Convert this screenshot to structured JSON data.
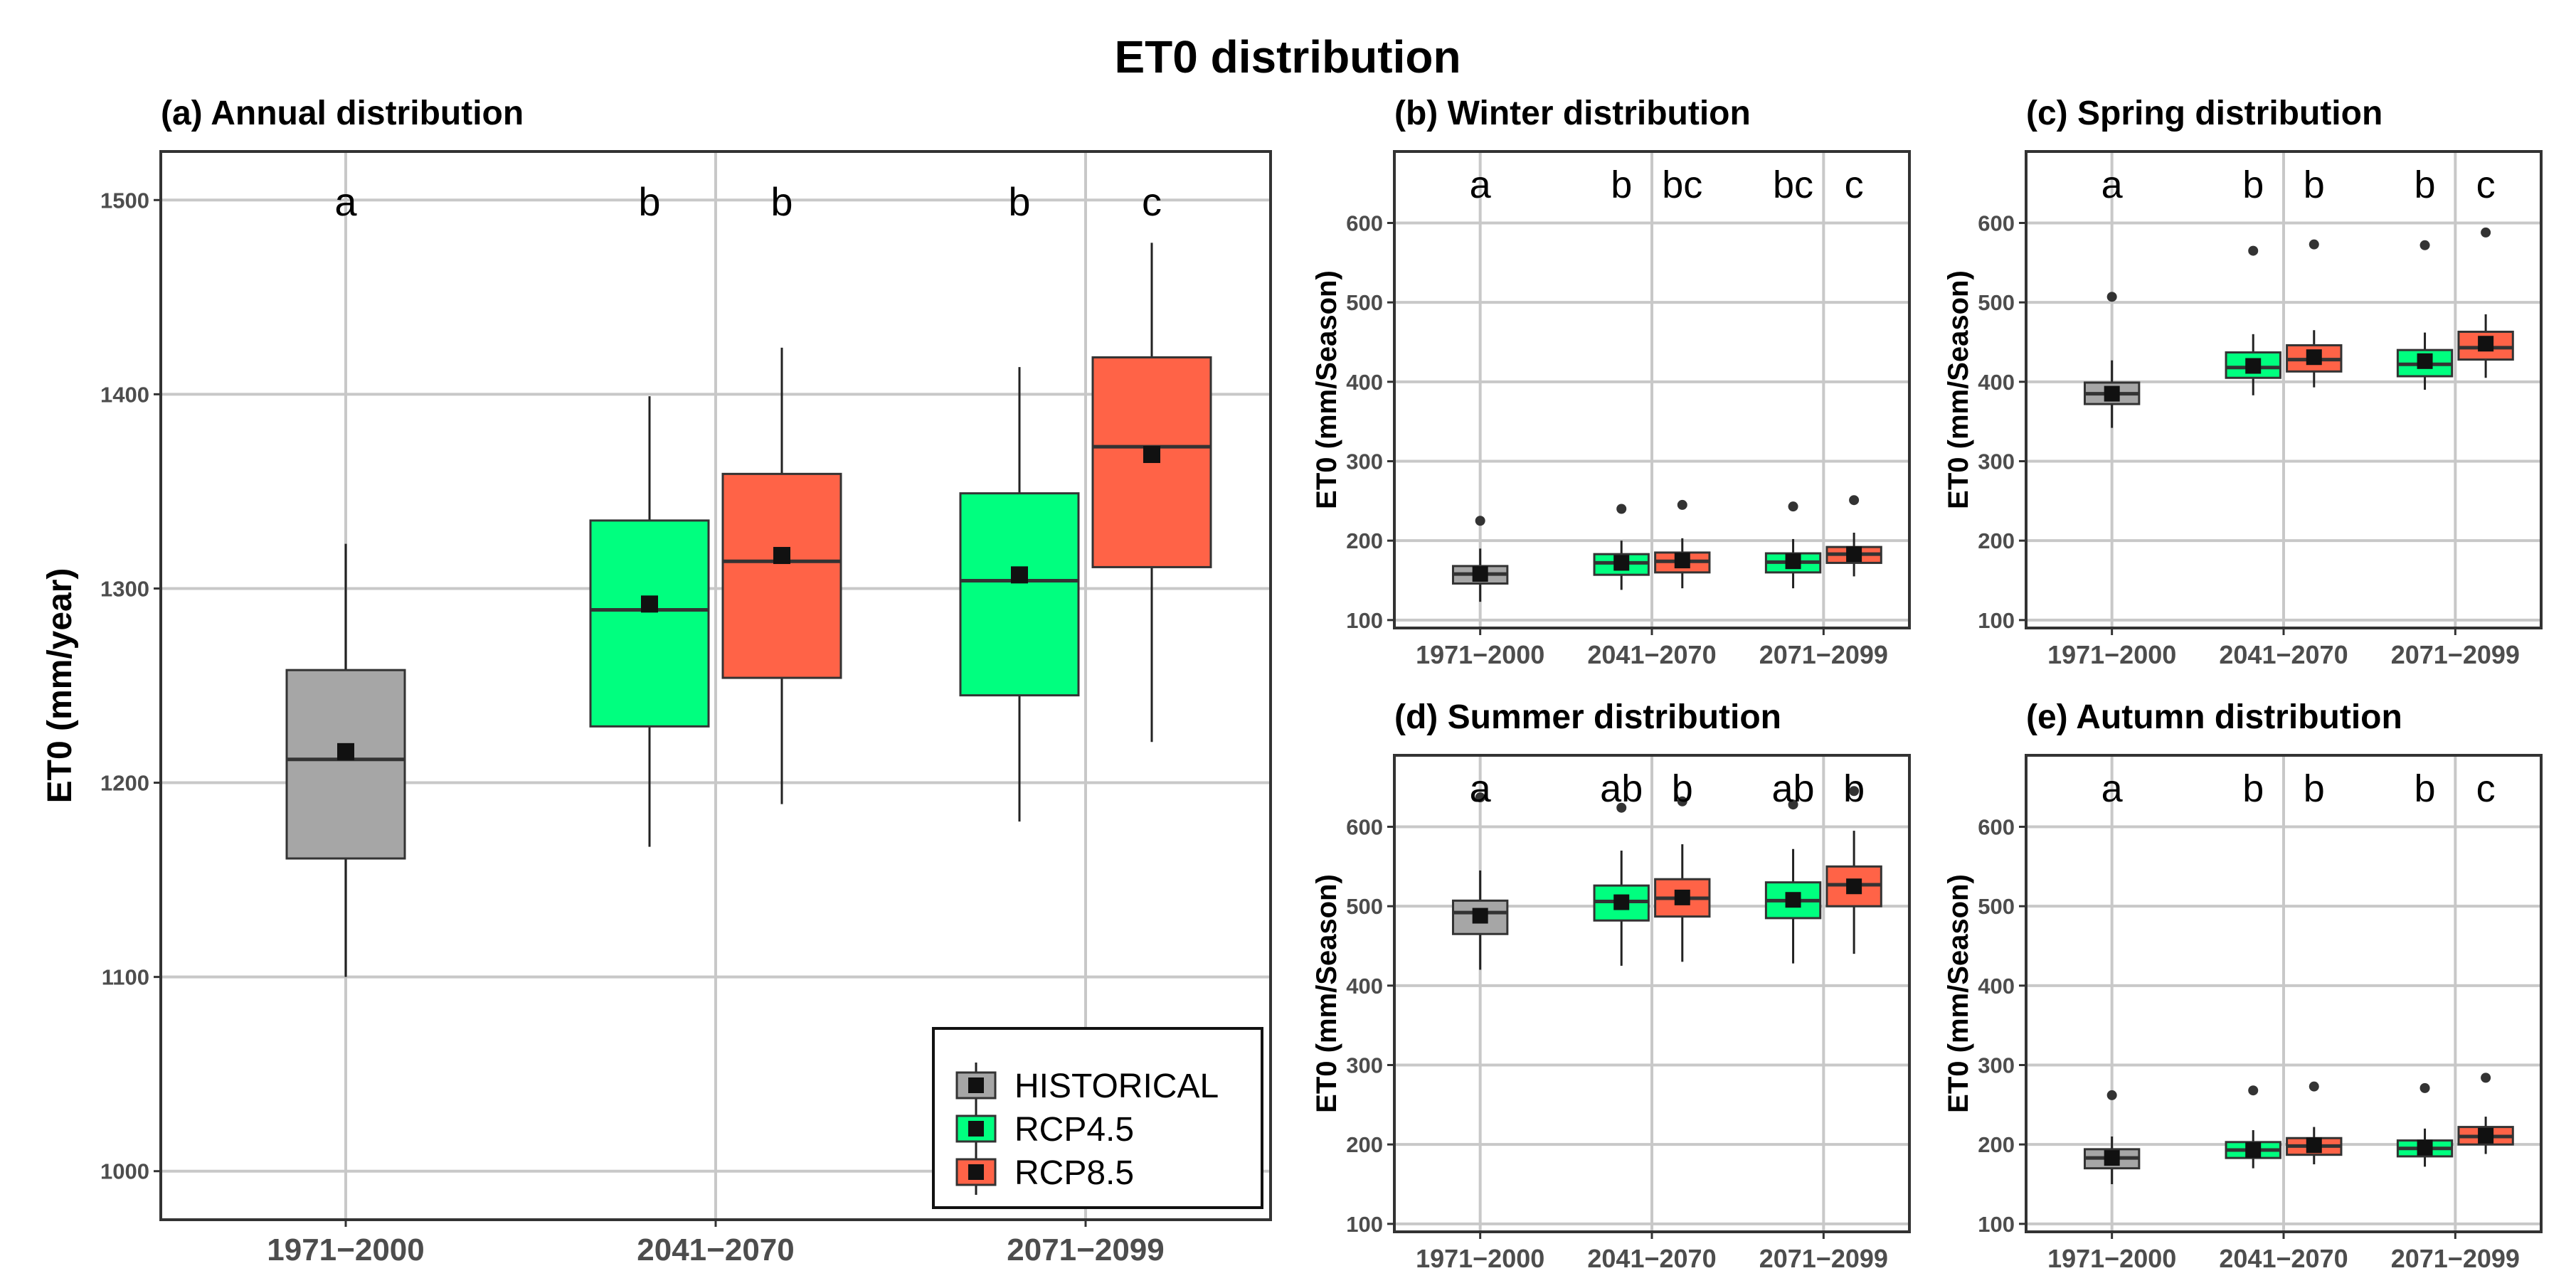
{
  "figure_title": "ET0 distribution",
  "colors": {
    "HISTORICAL": "#a6a6a6",
    "RCP4.5": "#00ff7f",
    "RCP8.5": "#ff6347"
  },
  "chart_data": [
    {
      "id": "a",
      "type": "boxplot",
      "title": "(a) Annual distribution",
      "ylabel": "ET0 (mm/year)",
      "xlabel": "",
      "categories": [
        "1971−2000",
        "2041−2070",
        "2071−2099"
      ],
      "ylim": [
        975,
        1525
      ],
      "yticks": [
        1000,
        1100,
        1200,
        1300,
        1400,
        1500
      ],
      "grid": true,
      "legend": {
        "position": "bottom-right",
        "entries": [
          "HISTORICAL",
          "RCP4.5",
          "RCP8.5"
        ]
      },
      "boxes": [
        {
          "category": "1971−2000",
          "scenario": "HISTORICAL",
          "min": 1100,
          "q1": 1161,
          "median": 1212,
          "q3": 1258,
          "max": 1323,
          "mean": 1216,
          "outliers": [],
          "letter": "a"
        },
        {
          "category": "2041−2070",
          "scenario": "RCP4.5",
          "min": 1167,
          "q1": 1229,
          "median": 1289,
          "q3": 1335,
          "max": 1399,
          "mean": 1292,
          "outliers": [],
          "letter": "b"
        },
        {
          "category": "2041−2070",
          "scenario": "RCP8.5",
          "min": 1189,
          "q1": 1254,
          "median": 1314,
          "q3": 1359,
          "max": 1424,
          "mean": 1317,
          "outliers": [],
          "letter": "b"
        },
        {
          "category": "2071−2099",
          "scenario": "RCP4.5",
          "min": 1180,
          "q1": 1245,
          "median": 1304,
          "q3": 1349,
          "max": 1414,
          "mean": 1307,
          "outliers": [],
          "letter": "b"
        },
        {
          "category": "2071−2099",
          "scenario": "RCP8.5",
          "min": 1221,
          "q1": 1311,
          "median": 1373,
          "q3": 1419,
          "max": 1478,
          "mean": 1369,
          "outliers": [],
          "letter": "c"
        }
      ]
    },
    {
      "id": "b",
      "type": "boxplot",
      "title": "(b) Winter distribution",
      "ylabel": "ET0 (mm/Season)",
      "xlabel": "",
      "categories": [
        "1971−2000",
        "2041−2070",
        "2071−2099"
      ],
      "ylim": [
        90,
        690
      ],
      "yticks": [
        100,
        200,
        300,
        400,
        500,
        600
      ],
      "grid": true,
      "boxes": [
        {
          "category": "1971−2000",
          "scenario": "HISTORICAL",
          "min": 123,
          "q1": 146,
          "median": 158,
          "q3": 168,
          "max": 190,
          "mean": 158,
          "outliers": [
            225
          ],
          "letter": "a"
        },
        {
          "category": "2041−2070",
          "scenario": "RCP4.5",
          "min": 138,
          "q1": 157,
          "median": 172,
          "q3": 183,
          "max": 200,
          "mean": 172,
          "outliers": [
            240
          ],
          "letter": "b"
        },
        {
          "category": "2041−2070",
          "scenario": "RCP8.5",
          "min": 140,
          "q1": 160,
          "median": 174,
          "q3": 185,
          "max": 203,
          "mean": 175,
          "outliers": [
            245
          ],
          "letter": "bc"
        },
        {
          "category": "2071−2099",
          "scenario": "RCP4.5",
          "min": 140,
          "q1": 160,
          "median": 173,
          "q3": 184,
          "max": 202,
          "mean": 174,
          "outliers": [
            243
          ],
          "letter": "bc"
        },
        {
          "category": "2071−2099",
          "scenario": "RCP8.5",
          "min": 155,
          "q1": 172,
          "median": 183,
          "q3": 192,
          "max": 210,
          "mean": 183,
          "outliers": [
            251
          ],
          "letter": "c"
        }
      ]
    },
    {
      "id": "c",
      "type": "boxplot",
      "title": "(c) Spring distribution",
      "ylabel": "ET0 (mm/Season)",
      "xlabel": "",
      "categories": [
        "1971−2000",
        "2041−2070",
        "2071−2099"
      ],
      "ylim": [
        90,
        690
      ],
      "yticks": [
        100,
        200,
        300,
        400,
        500,
        600
      ],
      "grid": true,
      "boxes": [
        {
          "category": "1971−2000",
          "scenario": "HISTORICAL",
          "min": 342,
          "q1": 372,
          "median": 385,
          "q3": 399,
          "max": 427,
          "mean": 385,
          "outliers": [
            507
          ],
          "letter": "a"
        },
        {
          "category": "2041−2070",
          "scenario": "RCP4.5",
          "min": 383,
          "q1": 405,
          "median": 418,
          "q3": 437,
          "max": 460,
          "mean": 420,
          "outliers": [
            565
          ],
          "letter": "b"
        },
        {
          "category": "2041−2070",
          "scenario": "RCP8.5",
          "min": 393,
          "q1": 413,
          "median": 428,
          "q3": 446,
          "max": 465,
          "mean": 431,
          "outliers": [
            573
          ],
          "letter": "b"
        },
        {
          "category": "2071−2099",
          "scenario": "RCP4.5",
          "min": 390,
          "q1": 407,
          "median": 422,
          "q3": 440,
          "max": 462,
          "mean": 426,
          "outliers": [
            572
          ],
          "letter": "b"
        },
        {
          "category": "2071−2099",
          "scenario": "RCP8.5",
          "min": 405,
          "q1": 428,
          "median": 443,
          "q3": 463,
          "max": 485,
          "mean": 448,
          "outliers": [
            588
          ],
          "letter": "c"
        }
      ]
    },
    {
      "id": "d",
      "type": "boxplot",
      "title": "(d) Summer distribution",
      "ylabel": "ET0 (mm/Season)",
      "xlabel": "",
      "categories": [
        "1971−2000",
        "2041−2070",
        "2071−2099"
      ],
      "ylim": [
        90,
        690
      ],
      "yticks": [
        100,
        200,
        300,
        400,
        500,
        600
      ],
      "grid": true,
      "boxes": [
        {
          "category": "1971−2000",
          "scenario": "HISTORICAL",
          "min": 420,
          "q1": 465,
          "median": 492,
          "q3": 507,
          "max": 545,
          "mean": 488,
          "outliers": [
            637
          ],
          "letter": "a"
        },
        {
          "category": "2041−2070",
          "scenario": "RCP4.5",
          "min": 425,
          "q1": 482,
          "median": 506,
          "q3": 526,
          "max": 570,
          "mean": 505,
          "outliers": [
            624
          ],
          "letter": "ab"
        },
        {
          "category": "2041−2070",
          "scenario": "RCP8.5",
          "min": 430,
          "q1": 487,
          "median": 510,
          "q3": 534,
          "max": 578,
          "mean": 511,
          "outliers": [
            632
          ],
          "letter": "b"
        },
        {
          "category": "2071−2099",
          "scenario": "RCP4.5",
          "min": 428,
          "q1": 485,
          "median": 507,
          "q3": 530,
          "max": 572,
          "mean": 508,
          "outliers": [
            628
          ],
          "letter": "ab"
        },
        {
          "category": "2071−2099",
          "scenario": "RCP8.5",
          "min": 440,
          "q1": 500,
          "median": 527,
          "q3": 550,
          "max": 595,
          "mean": 525,
          "outliers": [
            645
          ],
          "letter": "b"
        }
      ]
    },
    {
      "id": "e",
      "type": "boxplot",
      "title": "(e) Autumn distribution",
      "ylabel": "ET0 (mm/Season)",
      "xlabel": "",
      "categories": [
        "1971−2000",
        "2041−2070",
        "2071−2099"
      ],
      "ylim": [
        90,
        690
      ],
      "yticks": [
        100,
        200,
        300,
        400,
        500,
        600
      ],
      "grid": true,
      "boxes": [
        {
          "category": "1971−2000",
          "scenario": "HISTORICAL",
          "min": 150,
          "q1": 170,
          "median": 183,
          "q3": 194,
          "max": 210,
          "mean": 183,
          "outliers": [
            262
          ],
          "letter": "a"
        },
        {
          "category": "2041−2070",
          "scenario": "RCP4.5",
          "min": 170,
          "q1": 183,
          "median": 193,
          "q3": 203,
          "max": 218,
          "mean": 193,
          "outliers": [
            268
          ],
          "letter": "b"
        },
        {
          "category": "2041−2070",
          "scenario": "RCP8.5",
          "min": 175,
          "q1": 187,
          "median": 198,
          "q3": 208,
          "max": 222,
          "mean": 199,
          "outliers": [
            273
          ],
          "letter": "b"
        },
        {
          "category": "2071−2099",
          "scenario": "RCP4.5",
          "min": 172,
          "q1": 185,
          "median": 195,
          "q3": 205,
          "max": 220,
          "mean": 196,
          "outliers": [
            271
          ],
          "letter": "b"
        },
        {
          "category": "2071−2099",
          "scenario": "RCP8.5",
          "min": 188,
          "q1": 200,
          "median": 210,
          "q3": 222,
          "max": 235,
          "mean": 211,
          "outliers": [
            284
          ],
          "letter": "c"
        }
      ]
    }
  ]
}
